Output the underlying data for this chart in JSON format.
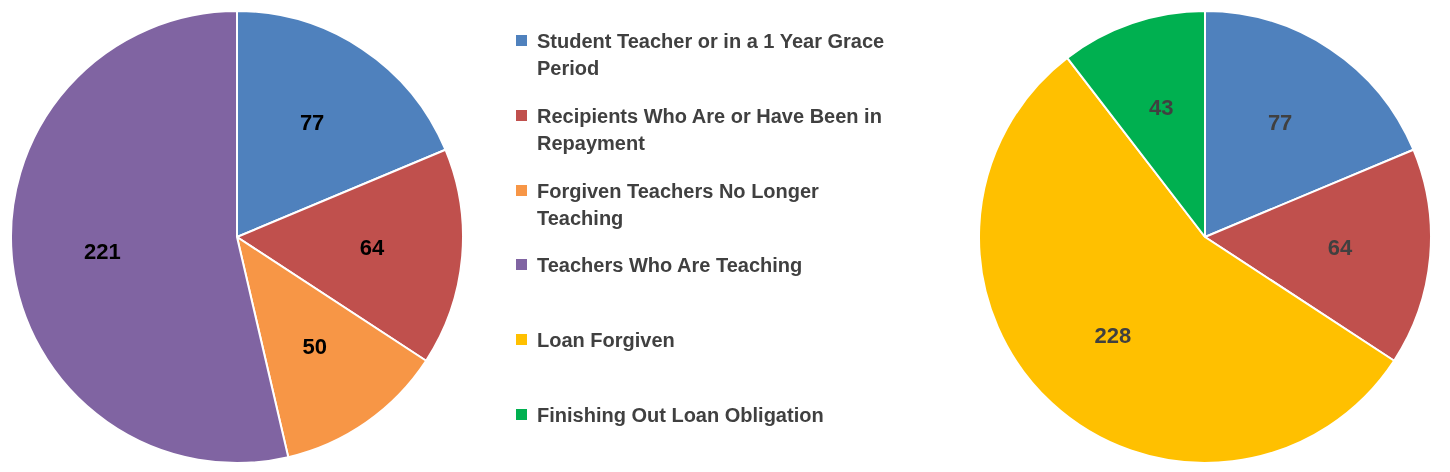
{
  "chart_data": [
    {
      "type": "pie",
      "categories": [
        "Student Teacher or in a 1 Year Grace Period",
        "Recipients Who Are or Have Been in Repayment",
        "Forgiven Teachers No Longer Teaching",
        "Teachers Who Are Teaching"
      ],
      "values": [
        77,
        64,
        50,
        221
      ],
      "colors": [
        "#4f81bd",
        "#c0504d",
        "#f79646",
        "#8064a2"
      ],
      "data_labels": true,
      "legend": "right"
    },
    {
      "type": "pie",
      "categories": [
        null,
        null,
        "Loan Forgiven",
        "Finishing Out Loan Obligation"
      ],
      "values": [
        77,
        64,
        228,
        43
      ],
      "colors": [
        "#4f81bd",
        "#c0504d",
        "#ffc000",
        "#00b050"
      ],
      "data_labels": true,
      "legend": "left"
    }
  ]
}
